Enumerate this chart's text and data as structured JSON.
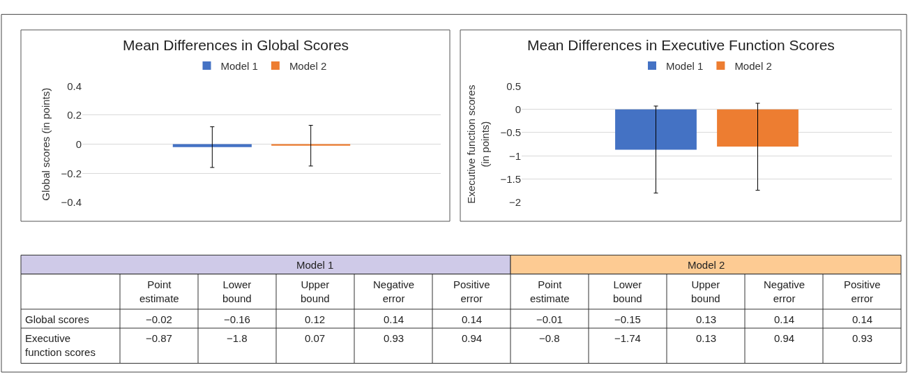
{
  "chart_data": [
    {
      "type": "bar",
      "title": "Mean Differences in Global Scores",
      "ylabel": "Global scores (in points)",
      "categories": [
        null
      ],
      "tick_labels": "y",
      "grid": "y",
      "legend": "top",
      "ylim": [
        -0.4,
        0.4
      ],
      "yticks": [
        {
          "value": -0.4,
          "label": "−0.4"
        },
        {
          "value": -0.2,
          "label": "−0.2"
        },
        0,
        0.2,
        0.4
      ],
      "series": [
        {
          "name": "Model 1",
          "color": "#4472c4",
          "values": [
            -0.02
          ],
          "errors": [
            [
              -0.16,
              0.12
            ]
          ]
        },
        {
          "name": "Model 2",
          "color": "#ed7d31",
          "values": [
            -0.01
          ],
          "errors": [
            [
              -0.15,
              0.13
            ]
          ]
        }
      ]
    },
    {
      "type": "bar",
      "title": "Mean Differences in Executive Function Scores",
      "ylabel": "Executive function scores (in points)",
      "categories": [
        null
      ],
      "tick_labels": "y",
      "grid": "y",
      "legend": "top",
      "ylim": [
        -2,
        0.5
      ],
      "yticks": [
        {
          "value": -2,
          "label": "−2"
        },
        {
          "value": -1.5,
          "label": "−1.5"
        },
        {
          "value": -1,
          "label": "−1"
        },
        {
          "value": -0.5,
          "label": "−0.5"
        },
        0,
        0.5
      ],
      "series": [
        {
          "name": "Model 1",
          "color": "#4472c4",
          "values": [
            -0.87
          ],
          "errors": [
            [
              -1.8,
              0.07
            ]
          ]
        },
        {
          "name": "Model 2",
          "color": "#ed7d31",
          "values": [
            -0.8
          ],
          "errors": [
            [
              -1.74,
              0.13
            ]
          ]
        }
      ]
    },
    {
      "type": "other",
      "annotations": [
        "Model 1",
        "Model 2"
      ],
      "colors": [
        "#cfcae8",
        "#fdcb93"
      ],
      "categories": [
        "Point estimate",
        "Lower bound",
        "Upper bound",
        "Negative error",
        "Positive error",
        "Point estimate",
        "Lower bound",
        "Upper bound",
        "Negative error",
        "Positive error"
      ],
      "y_categories": [
        "Global scores",
        "Executive function scores"
      ],
      "cell_labels": [
        [
          "−0.02",
          "−0.16",
          "0.12",
          "0.14",
          "0.14",
          "−0.01",
          "−0.15",
          "0.13",
          "0.14",
          "0.14"
        ],
        [
          "−0.87",
          "−1.8",
          "0.07",
          "0.93",
          "0.94",
          "−0.8",
          "−1.74",
          "0.13",
          "0.94",
          "0.93"
        ]
      ]
    }
  ]
}
